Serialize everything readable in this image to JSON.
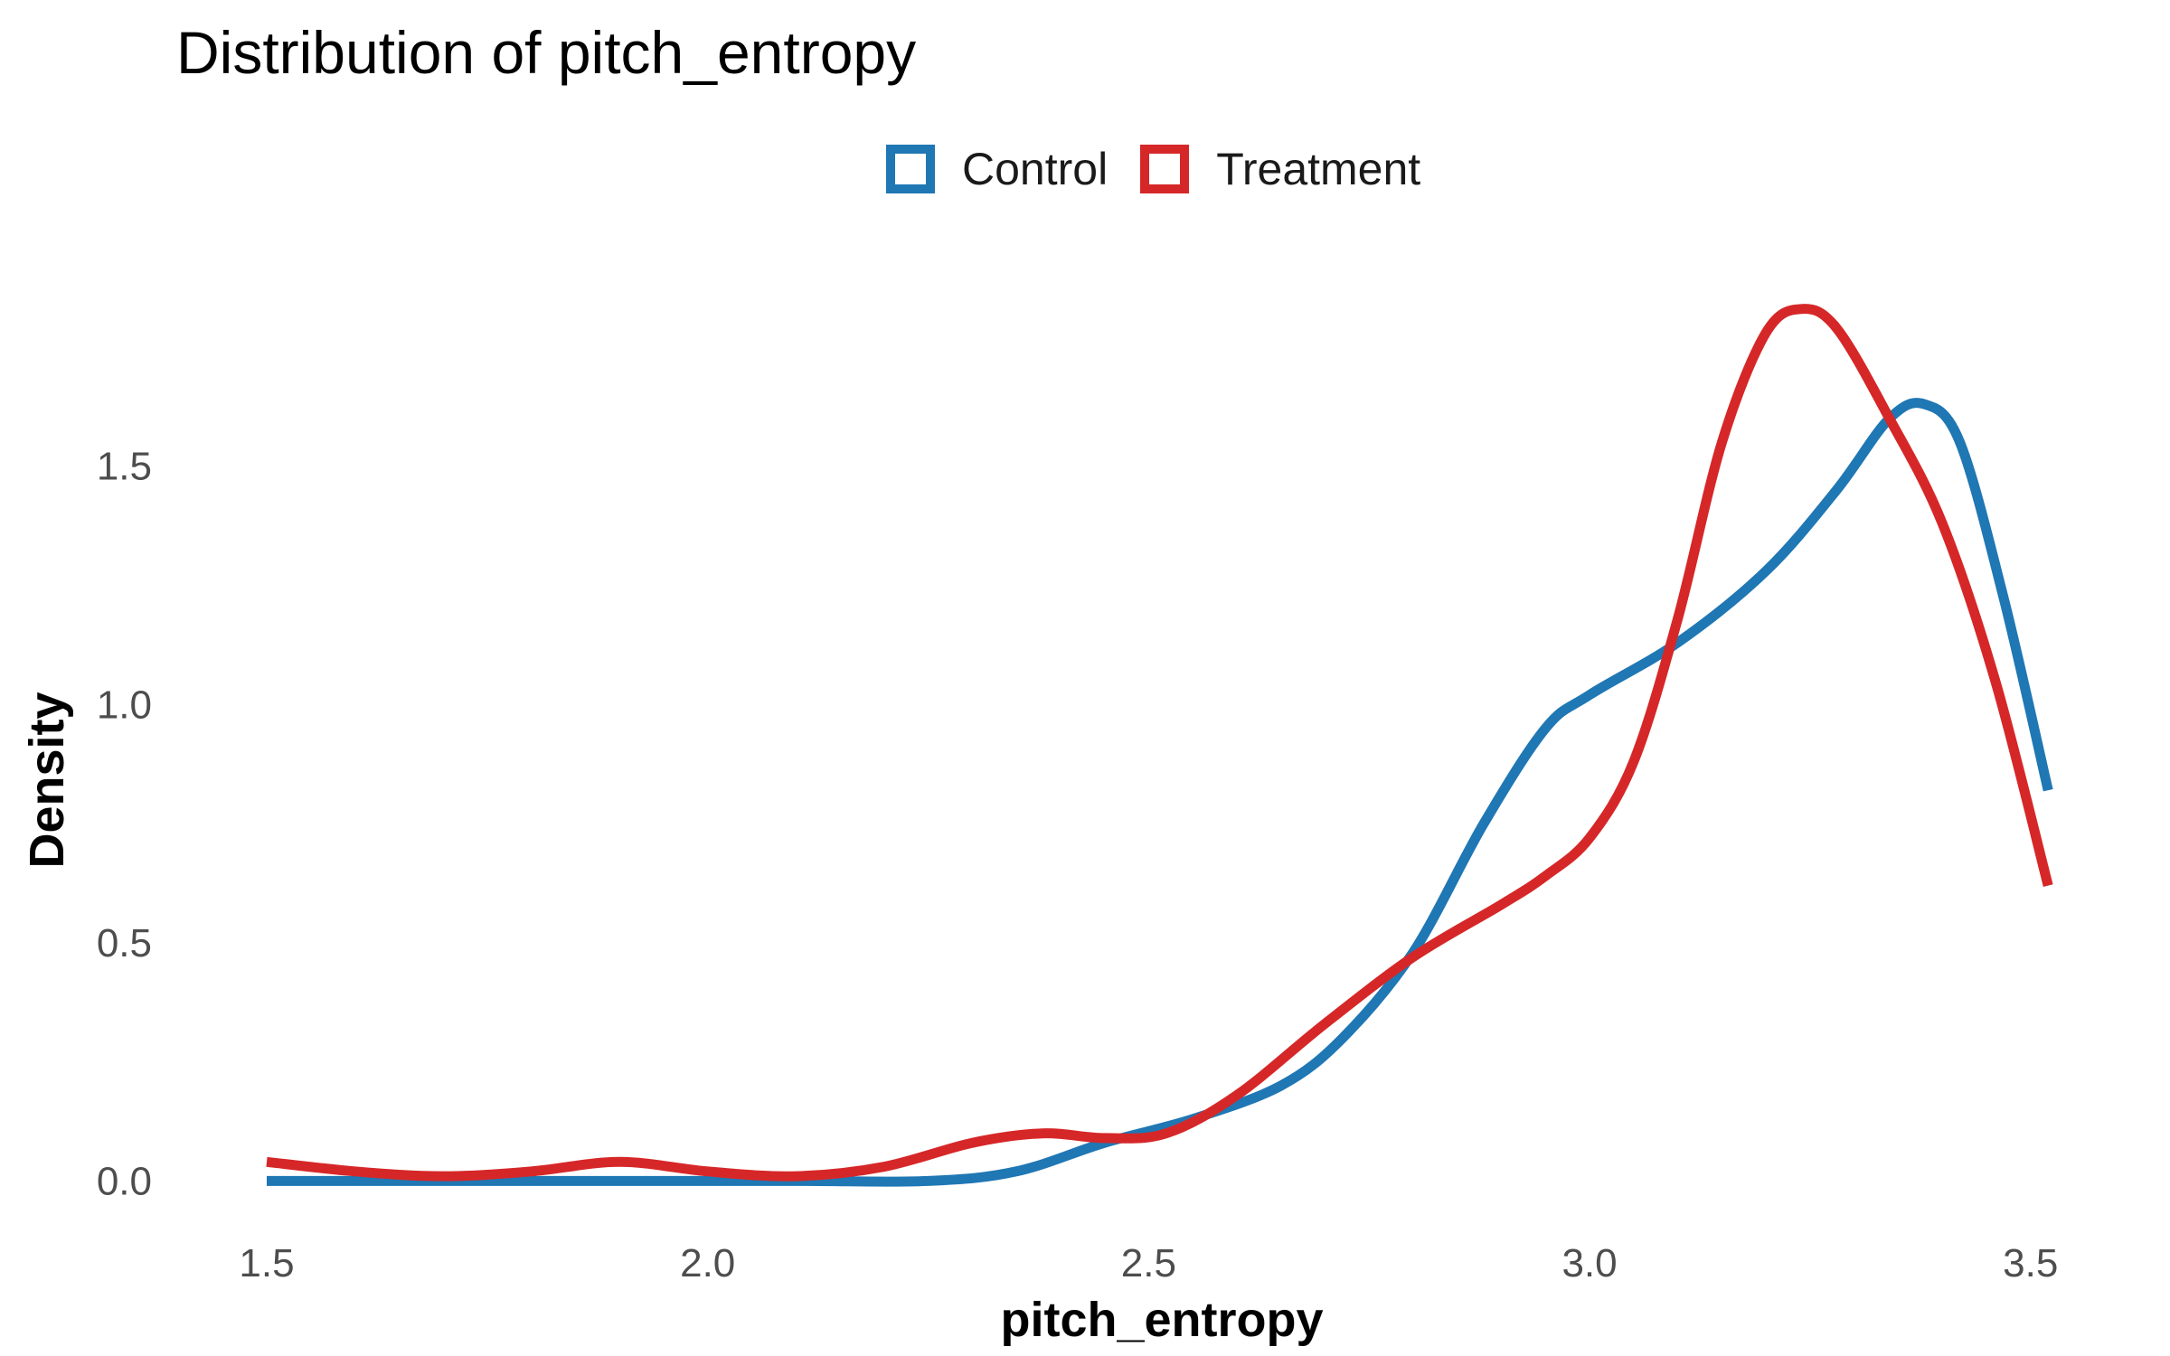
{
  "chart_data": {
    "type": "line",
    "title": "Distribution of pitch_entropy",
    "xlabel": "pitch_entropy",
    "ylabel": "Density",
    "xlim": [
      1.5,
      3.53
    ],
    "ylim": [
      -0.06,
      1.97
    ],
    "x_ticks": [
      "1.5",
      "2.0",
      "2.5",
      "3.0",
      "3.5"
    ],
    "x_tick_values": [
      1.5,
      2.0,
      2.5,
      3.0,
      3.5
    ],
    "y_ticks": [
      "0.0",
      "0.5",
      "1.0",
      "1.5"
    ],
    "y_tick_values": [
      0.0,
      0.5,
      1.0,
      1.5
    ],
    "grid": false,
    "legend_position": "top",
    "series": [
      {
        "name": "Control",
        "color": "#1f77b4",
        "x": [
          1.5,
          1.7,
          1.9,
          2.1,
          2.25,
          2.35,
          2.45,
          2.55,
          2.65,
          2.72,
          2.8,
          2.88,
          2.95,
          3.0,
          3.1,
          3.2,
          3.28,
          3.34,
          3.38,
          3.42,
          3.47,
          3.52
        ],
        "y": [
          0.0,
          0.0,
          0.0,
          0.0,
          0.0,
          0.02,
          0.08,
          0.13,
          0.2,
          0.3,
          0.48,
          0.75,
          0.95,
          1.02,
          1.13,
          1.28,
          1.45,
          1.6,
          1.63,
          1.55,
          1.22,
          0.82
        ]
      },
      {
        "name": "Treatment",
        "color": "#d62728",
        "x": [
          1.5,
          1.6,
          1.7,
          1.8,
          1.9,
          2.0,
          2.1,
          2.2,
          2.3,
          2.38,
          2.45,
          2.52,
          2.6,
          2.7,
          2.8,
          2.9,
          2.95,
          3.0,
          3.05,
          3.1,
          3.15,
          3.2,
          3.24,
          3.28,
          3.34,
          3.4,
          3.46,
          3.52
        ],
        "y": [
          0.04,
          0.02,
          0.01,
          0.02,
          0.04,
          0.02,
          0.01,
          0.03,
          0.08,
          0.1,
          0.09,
          0.1,
          0.18,
          0.33,
          0.47,
          0.58,
          0.64,
          0.72,
          0.88,
          1.18,
          1.55,
          1.78,
          1.83,
          1.79,
          1.6,
          1.38,
          1.05,
          0.62
        ]
      }
    ]
  }
}
